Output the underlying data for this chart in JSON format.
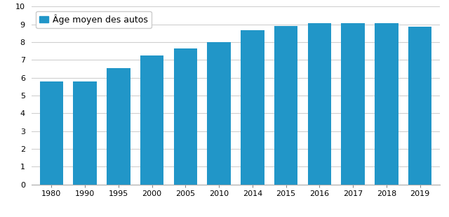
{
  "categories": [
    "1980",
    "1990",
    "1995",
    "2000",
    "2005",
    "2010",
    "2014",
    "2015",
    "2016",
    "2017",
    "2018",
    "2019"
  ],
  "values": [
    5.8,
    5.8,
    6.55,
    7.25,
    7.65,
    8.0,
    8.65,
    8.9,
    9.05,
    9.05,
    9.05,
    8.85
  ],
  "bar_color": "#2196C8",
  "legend_label": "Âge moyen des autos",
  "ylim": [
    0,
    10
  ],
  "yticks": [
    0,
    1,
    2,
    3,
    4,
    5,
    6,
    7,
    8,
    9,
    10
  ],
  "background_color": "#ffffff",
  "grid_color": "#d0d0d0",
  "tick_fontsize": 8,
  "legend_fontsize": 9,
  "bar_width": 0.7
}
